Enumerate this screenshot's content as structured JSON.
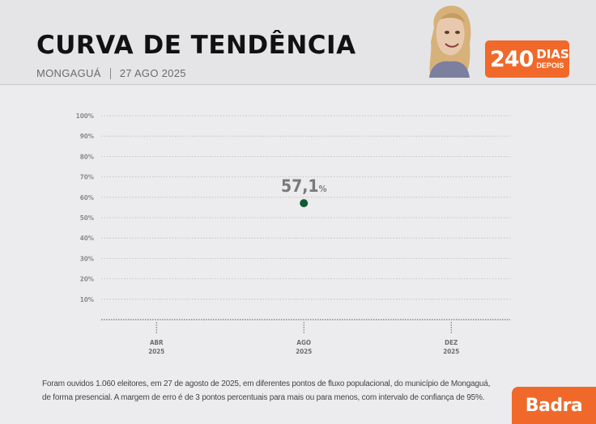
{
  "header": {
    "title": "CURVA DE TENDÊNCIA",
    "city": "MONGAGUÁ",
    "date": "27 AGO 2025",
    "badge_number": "240",
    "badge_word1": "DIAS",
    "badge_word2": "DEPOIS"
  },
  "chart_data": {
    "type": "scatter",
    "title": "",
    "xlabel": "",
    "ylabel": "",
    "ylim": [
      0,
      100
    ],
    "y_ticks": [
      "10%",
      "20%",
      "30%",
      "40%",
      "50%",
      "60%",
      "70%",
      "80%",
      "90%",
      "100%"
    ],
    "y_tick_values": [
      10,
      20,
      30,
      40,
      50,
      60,
      70,
      80,
      90,
      100
    ],
    "x_ticks": [
      {
        "month": "ABR",
        "year": "2025",
        "value": 4
      },
      {
        "month": "AGO",
        "year": "2025",
        "value": 8
      },
      {
        "month": "DEZ",
        "year": "2025",
        "value": 12
      }
    ],
    "xlim": [
      2.5,
      13.6
    ],
    "grid": true,
    "series": [
      {
        "color": "#0f5a34",
        "points": [
          {
            "x": 8,
            "y": 57.1,
            "label_number": "57,1",
            "label_unit": "%"
          }
        ]
      }
    ]
  },
  "footnote": {
    "line1": "Foram ouvidos 1.060 eleitores, em 27 de agosto de 2025, em diferentes pontos de fluxo populacional, do município de Mongaguá,",
    "line2": "de forma presencial. A margem de erro é de 3 pontos percentuais para mais ou para menos, com intervalo de confiança de 95%."
  },
  "brand": "Badra",
  "colors": {
    "accent": "#f0692a",
    "point": "#0f5a34",
    "grid": "#b9b9b9",
    "label": "#7a7a7a"
  }
}
